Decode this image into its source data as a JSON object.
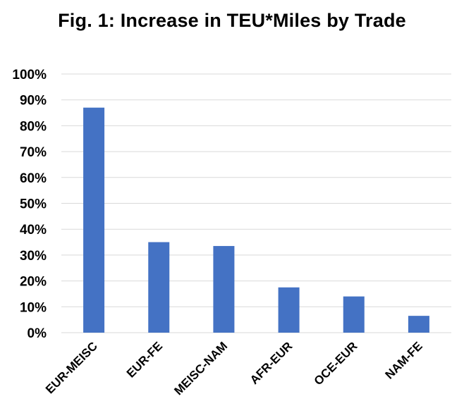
{
  "chart_data": {
    "type": "bar",
    "title": "Fig. 1: Increase in TEU*Miles by Trade",
    "xlabel": "",
    "ylabel": "",
    "categories": [
      "EUR-MEISC",
      "EUR-FE",
      "MEISC-NAM",
      "AFR-EUR",
      "OCE-EUR",
      "NAM-FE"
    ],
    "values": [
      87,
      35,
      33.5,
      17.5,
      14,
      6.5
    ],
    "ylim": [
      0,
      100
    ],
    "yticks": [
      "0%",
      "10%",
      "20%",
      "30%",
      "40%",
      "50%",
      "60%",
      "70%",
      "80%",
      "90%",
      "100%"
    ],
    "grid": true,
    "legend": "none",
    "bar_color": "#4472c4"
  }
}
